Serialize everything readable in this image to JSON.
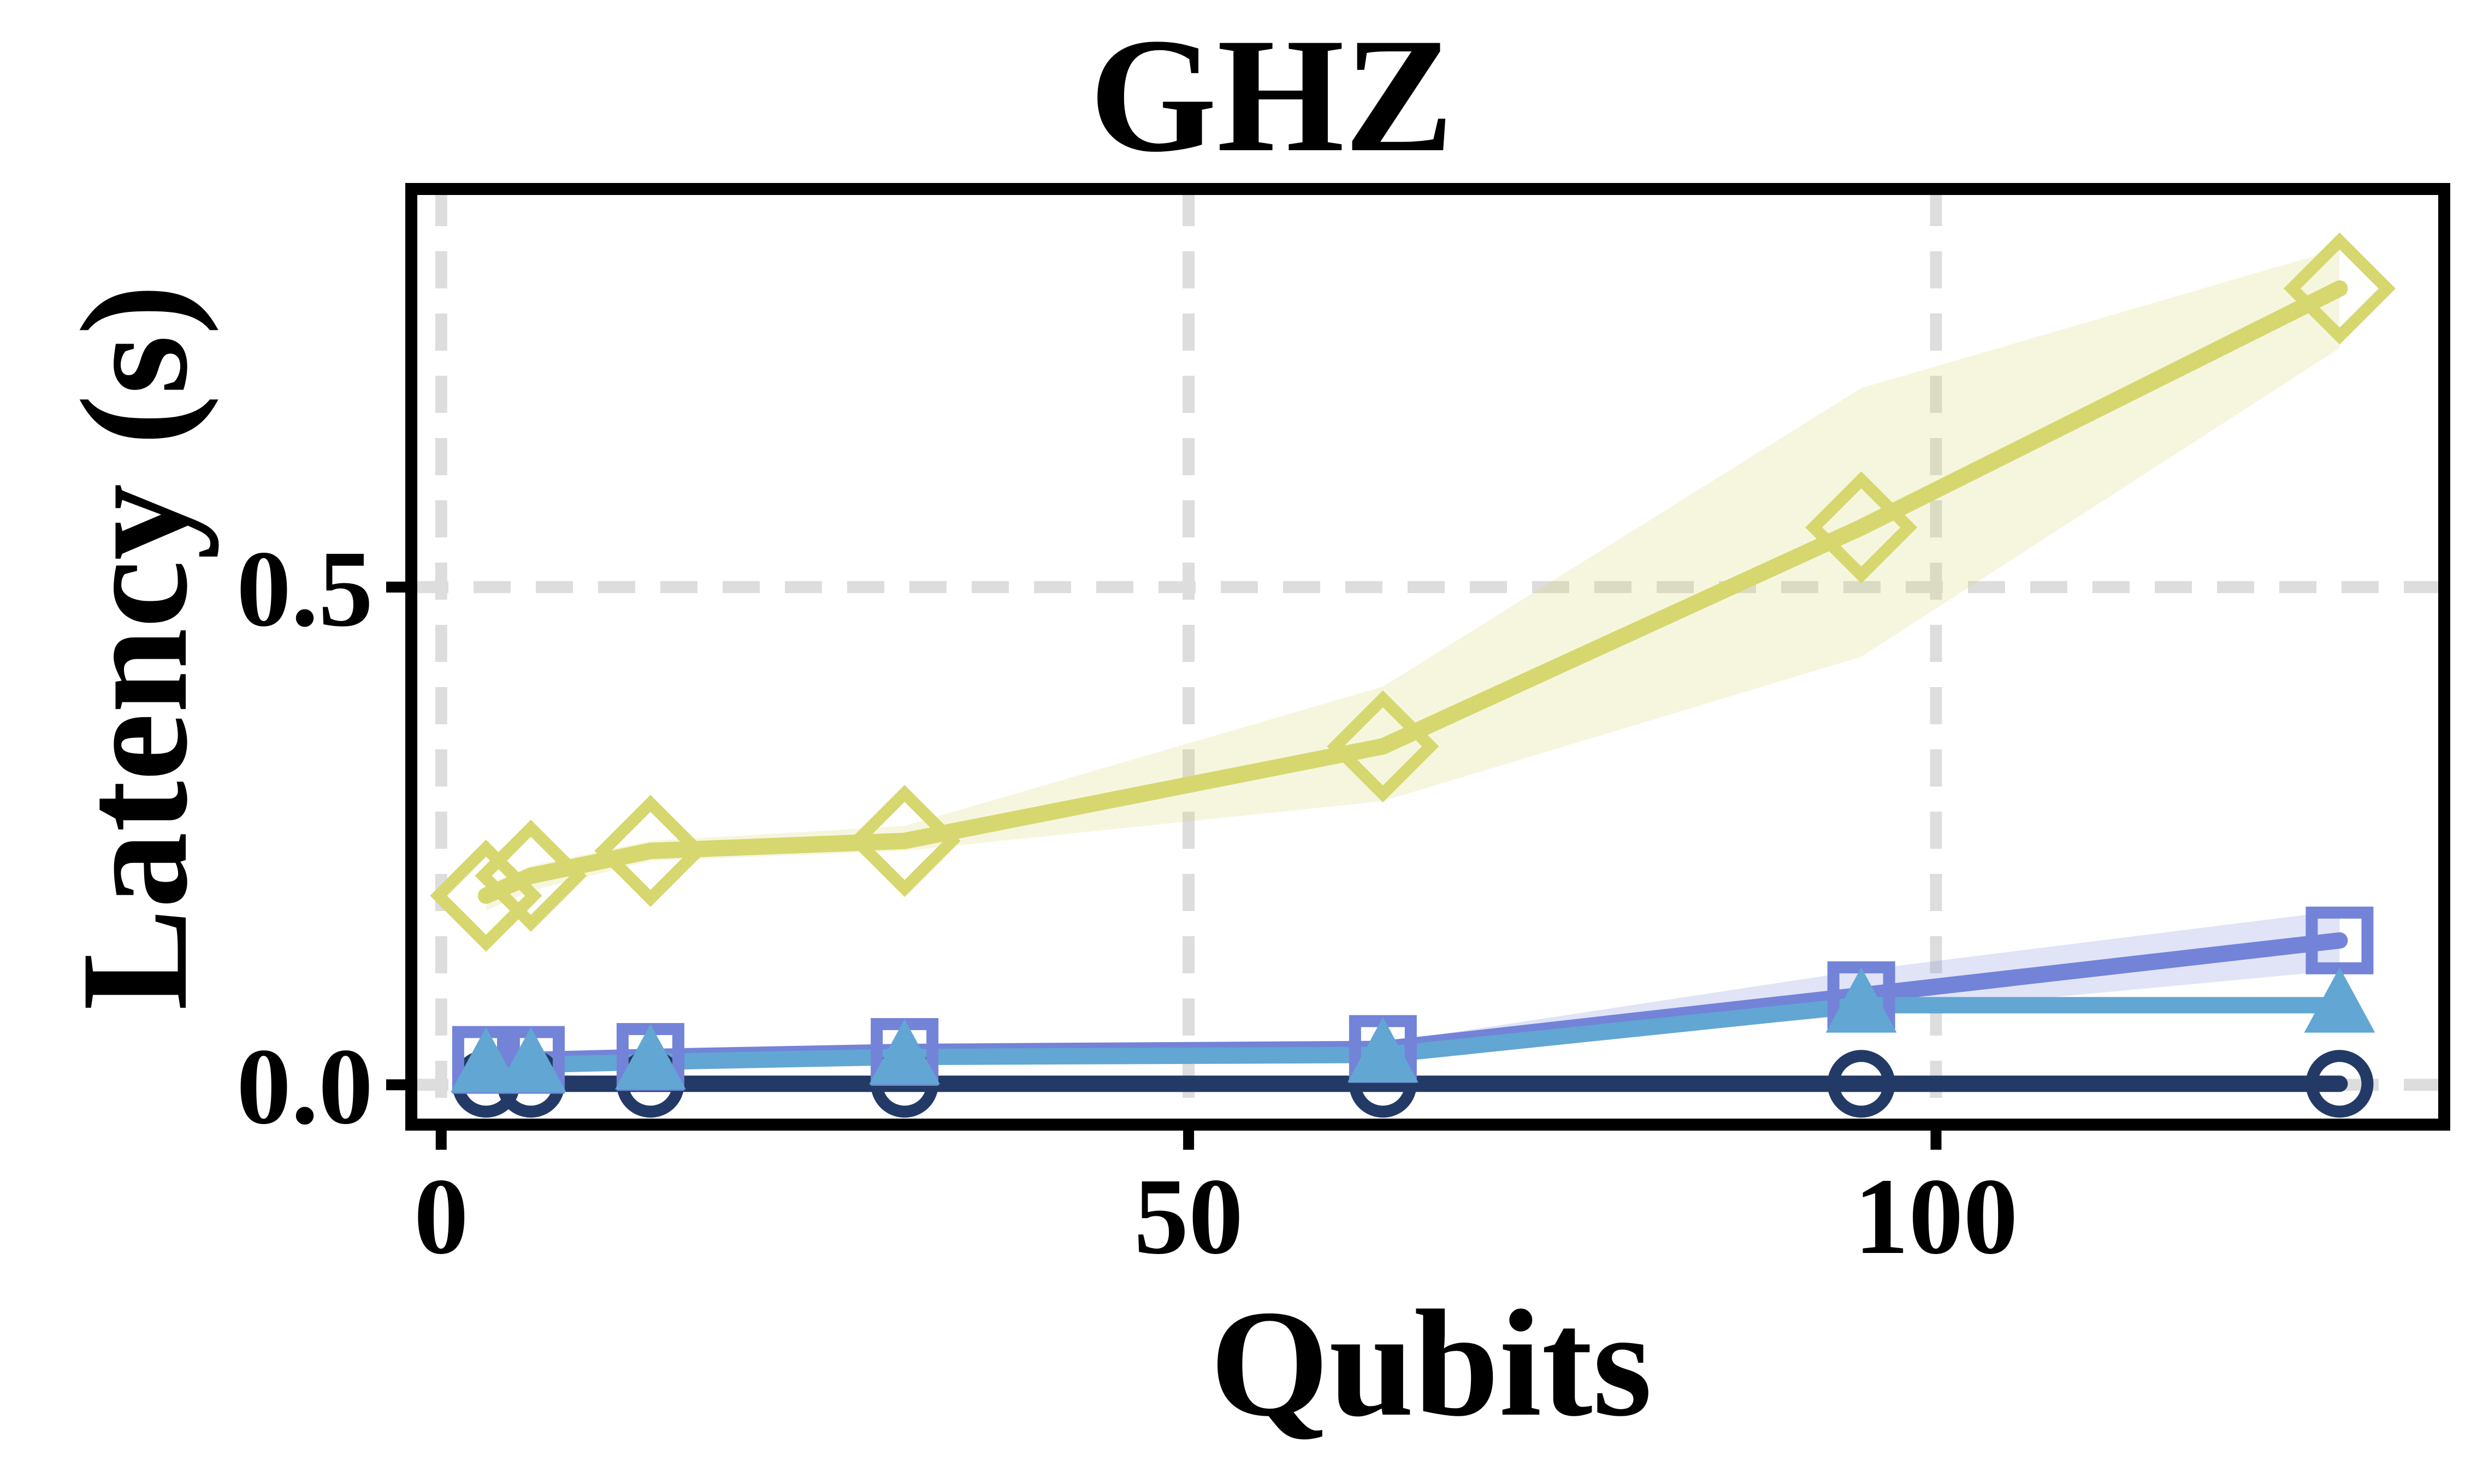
{
  "chart_data": {
    "type": "line",
    "title": "GHZ",
    "xlabel": "Qubits",
    "ylabel": "Latency (s)",
    "xlim": [
      -2,
      134
    ],
    "ylim": [
      -0.04,
      0.9
    ],
    "xticks": [
      0,
      50,
      100
    ],
    "xtick_labels": [
      "0",
      "50",
      "100"
    ],
    "yticks": [
      0.0,
      0.5
    ],
    "ytick_labels": [
      "0.0",
      "0.5"
    ],
    "grid": true,
    "legend": "none",
    "x": [
      3,
      6,
      14,
      31,
      63,
      95,
      127
    ],
    "series": [
      {
        "marker": "circle",
        "color": "#233a66",
        "values": [
          0.001,
          0.001,
          0.001,
          0.001,
          0.001,
          0.001,
          0.001
        ],
        "lower": [
          0.0,
          0.0,
          0.0,
          0.0,
          0.0,
          0.0,
          0.0
        ],
        "upper": [
          0.003,
          0.003,
          0.003,
          0.003,
          0.003,
          0.003,
          0.003
        ]
      },
      {
        "marker": "square",
        "color": "#7383d8",
        "values": [
          0.025,
          0.025,
          0.028,
          0.033,
          0.036,
          0.09,
          0.145
        ],
        "lower": [
          0.02,
          0.02,
          0.023,
          0.028,
          0.03,
          0.07,
          0.115
        ],
        "upper": [
          0.03,
          0.03,
          0.033,
          0.038,
          0.042,
          0.115,
          0.175
        ]
      },
      {
        "marker": "triangle",
        "color": "#62a6d3",
        "values": [
          0.02,
          0.02,
          0.023,
          0.028,
          0.03,
          0.08,
          0.08
        ],
        "lower": [
          0.017,
          0.017,
          0.02,
          0.025,
          0.027,
          0.075,
          0.075
        ],
        "upper": [
          0.023,
          0.023,
          0.026,
          0.031,
          0.033,
          0.085,
          0.085
        ]
      },
      {
        "marker": "diamond",
        "color": "#d6d76e",
        "values": [
          0.19,
          0.21,
          0.235,
          0.245,
          0.34,
          0.56,
          0.8
        ],
        "lower": [
          0.175,
          0.195,
          0.225,
          0.235,
          0.285,
          0.43,
          0.74
        ],
        "upper": [
          0.2,
          0.22,
          0.245,
          0.26,
          0.4,
          0.7,
          0.84
        ]
      }
    ]
  }
}
